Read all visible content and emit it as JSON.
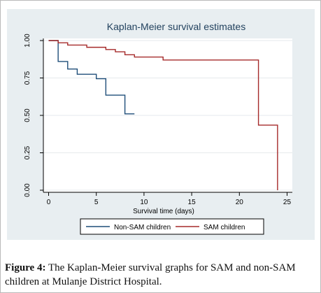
{
  "chart_data": {
    "type": "line",
    "title": "Kaplan-Meier survival estimates",
    "xlabel": "Survival time (days)",
    "ylabel": "",
    "xlim": [
      0,
      25
    ],
    "ylim": [
      0,
      1
    ],
    "xticks": [
      "0",
      "5",
      "10",
      "15",
      "20",
      "25"
    ],
    "yticks": [
      "0.00",
      "0.25",
      "0.50",
      "0.75",
      "1.00"
    ],
    "grid": true,
    "legend_position": "bottom",
    "series": [
      {
        "name": "Non-SAM children",
        "color": "#1f4e79",
        "steps": [
          [
            0,
            1.0
          ],
          [
            1,
            0.86
          ],
          [
            2,
            0.81
          ],
          [
            3,
            0.775
          ],
          [
            5,
            0.745
          ],
          [
            6,
            0.635
          ],
          [
            8,
            0.51
          ],
          [
            9,
            0.51
          ]
        ]
      },
      {
        "name": "SAM children",
        "color": "#a52a2a",
        "steps": [
          [
            0,
            1.0
          ],
          [
            1,
            0.985
          ],
          [
            2,
            0.97
          ],
          [
            4,
            0.955
          ],
          [
            6,
            0.94
          ],
          [
            7,
            0.925
          ],
          [
            8,
            0.905
          ],
          [
            9,
            0.89
          ],
          [
            12,
            0.87
          ],
          [
            22,
            0.435
          ],
          [
            24,
            0.0
          ]
        ]
      }
    ]
  },
  "caption": {
    "label": "Figure 4:",
    "text": " The Kaplan-Meier survival graphs for SAM and non-SAM children at Mulanje District Hospital."
  }
}
